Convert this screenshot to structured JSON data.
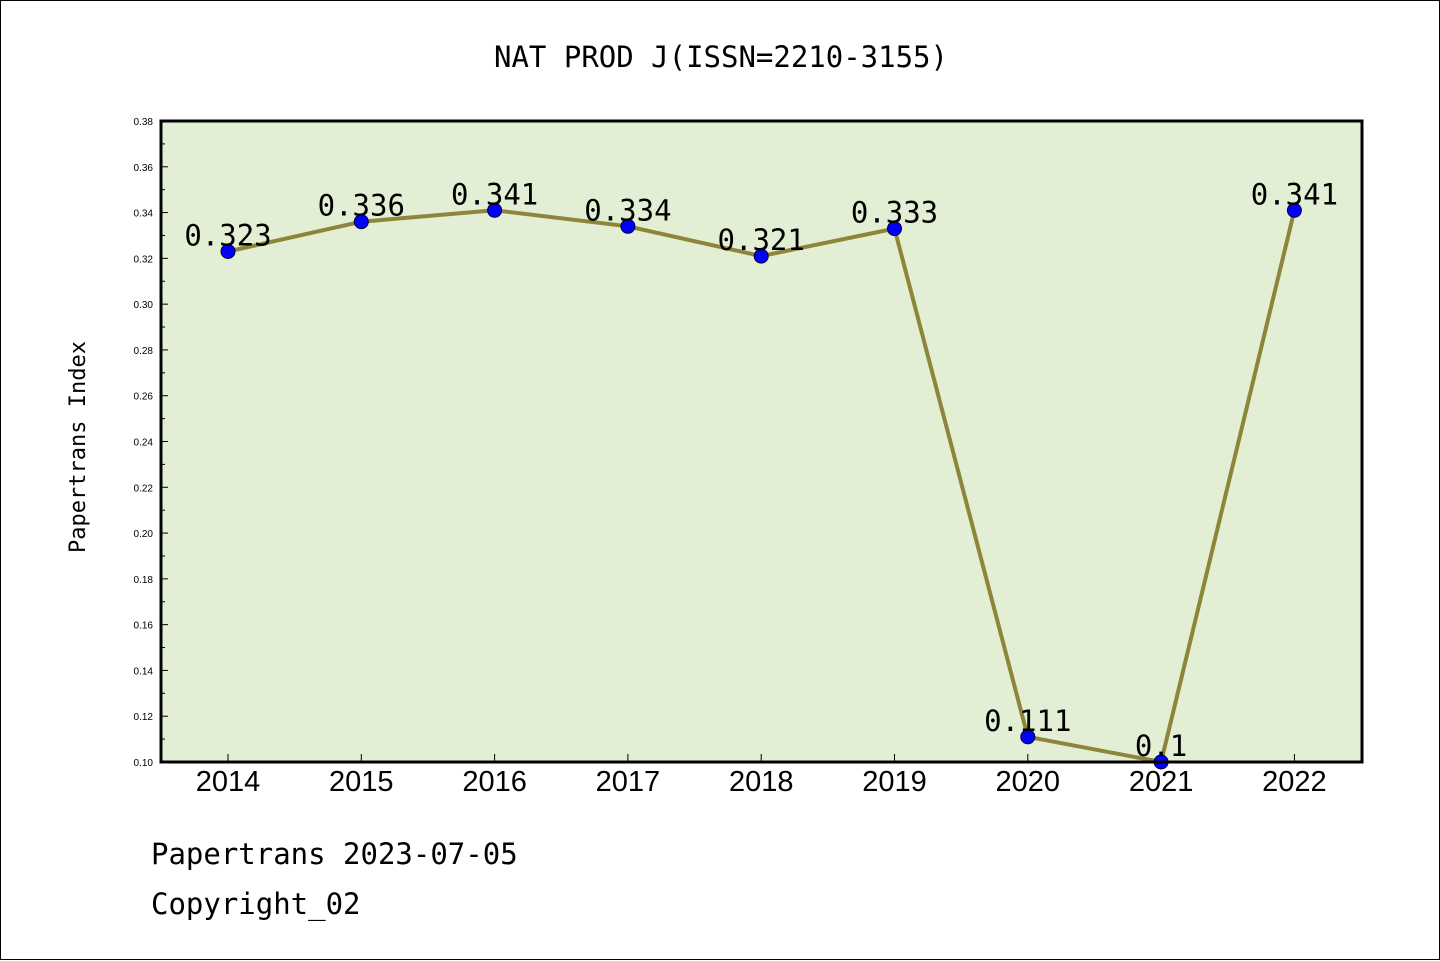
{
  "chart_data": {
    "type": "line",
    "title": "NAT PROD J(ISSN=2210-3155)",
    "xlabel": "",
    "ylabel": "Papertrans Index",
    "categories": [
      "2014",
      "2015",
      "2016",
      "2017",
      "2018",
      "2019",
      "2020",
      "2021",
      "2022"
    ],
    "series": [
      {
        "values": [
          0.323,
          0.336,
          0.341,
          0.334,
          0.321,
          0.333,
          0.111,
          0.1,
          0.341
        ],
        "labels": [
          "0.323",
          "0.336",
          "0.341",
          "0.334",
          "0.321",
          "0.333",
          "0.111",
          "0.1",
          "0.341"
        ]
      }
    ],
    "ylim": [
      0.1,
      0.38
    ],
    "yticks": [
      "0.10",
      "0.12",
      "0.14",
      "0.16",
      "0.18",
      "0.20",
      "0.22",
      "0.24",
      "0.26",
      "0.28",
      "0.30",
      "0.32",
      "0.34",
      "0.36",
      "0.38"
    ],
    "grid": false,
    "legend": "none",
    "colors": {
      "plot_background": "#e2efd5",
      "line": "#8c853a",
      "marker": "#0000ff"
    }
  },
  "footer": {
    "line1": "Papertrans 2023-07-05",
    "line2": "Copyright_02"
  }
}
